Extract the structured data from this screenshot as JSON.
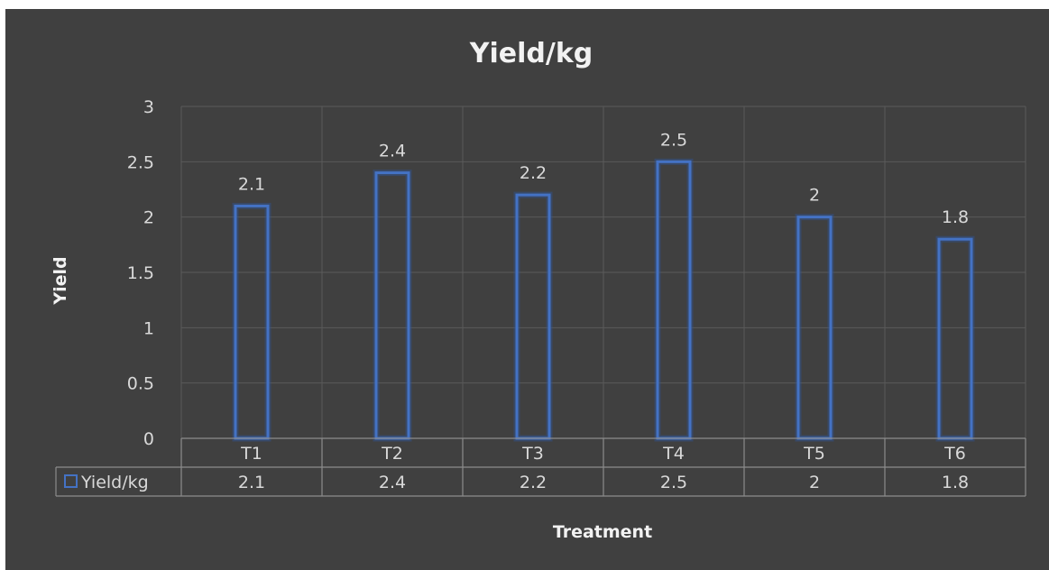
{
  "chart_data": {
    "type": "bar",
    "title": "Yield/kg",
    "xlabel": "Treatment",
    "ylabel": "Yield",
    "categories": [
      "T1",
      "T2",
      "T3",
      "T4",
      "T5",
      "T6"
    ],
    "series": [
      {
        "name": "Yield/kg",
        "values": [
          2.1,
          2.4,
          2.2,
          2.5,
          2,
          1.8
        ]
      }
    ],
    "data_labels": [
      "2.1",
      "2.4",
      "2.2",
      "2.5",
      "2",
      "1.8"
    ],
    "ylim": [
      0,
      3
    ],
    "yticks": [
      "0",
      "0.5",
      "1",
      "1.5",
      "2",
      "2.5",
      "3"
    ],
    "ytick_values": [
      0,
      0.5,
      1,
      1.5,
      2,
      2.5,
      3
    ],
    "grid": true,
    "data_table": true,
    "colors": {
      "background": "#404040",
      "bar_outline": "#4472c4",
      "text": "#d9d9d9",
      "title": "#f2f2f2"
    }
  }
}
